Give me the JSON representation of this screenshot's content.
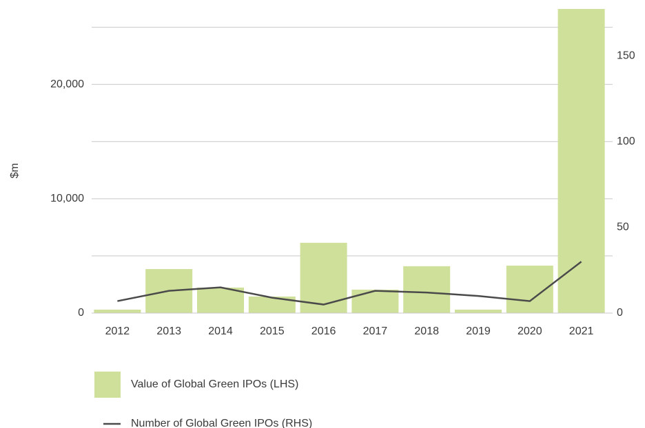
{
  "chart_data": {
    "type": "bar_line",
    "y_label": "$m",
    "categories": [
      "2012",
      "2013",
      "2014",
      "2015",
      "2016",
      "2017",
      "2018",
      "2019",
      "2020",
      "2021"
    ],
    "series": [
      {
        "name": "Value of Global Green IPOs (LHS)",
        "type": "bar",
        "color": "#cfe09b",
        "values": [
          300,
          3850,
          2230,
          1450,
          6150,
          2050,
          4100,
          300,
          4150,
          26600
        ]
      },
      {
        "name": "Number of Global Green IPOs (RHS)",
        "type": "line",
        "axis": "y2",
        "color": "#4a4a4a",
        "values": [
          7,
          13,
          15,
          9,
          5,
          13,
          12,
          10,
          7,
          30
        ]
      }
    ],
    "ylim": [
      0,
      26600
    ],
    "yticks": [
      0,
      {
        "value": 10000,
        "label": "10,000"
      },
      {
        "value": 20000,
        "label": "20,000"
      }
    ],
    "ygrid": [
      5000,
      10000,
      15000,
      20000,
      25000
    ],
    "y2lim": [
      0,
      177.5
    ],
    "y2ticks": [
      0,
      50,
      100,
      150
    ],
    "legend": "bottom"
  }
}
